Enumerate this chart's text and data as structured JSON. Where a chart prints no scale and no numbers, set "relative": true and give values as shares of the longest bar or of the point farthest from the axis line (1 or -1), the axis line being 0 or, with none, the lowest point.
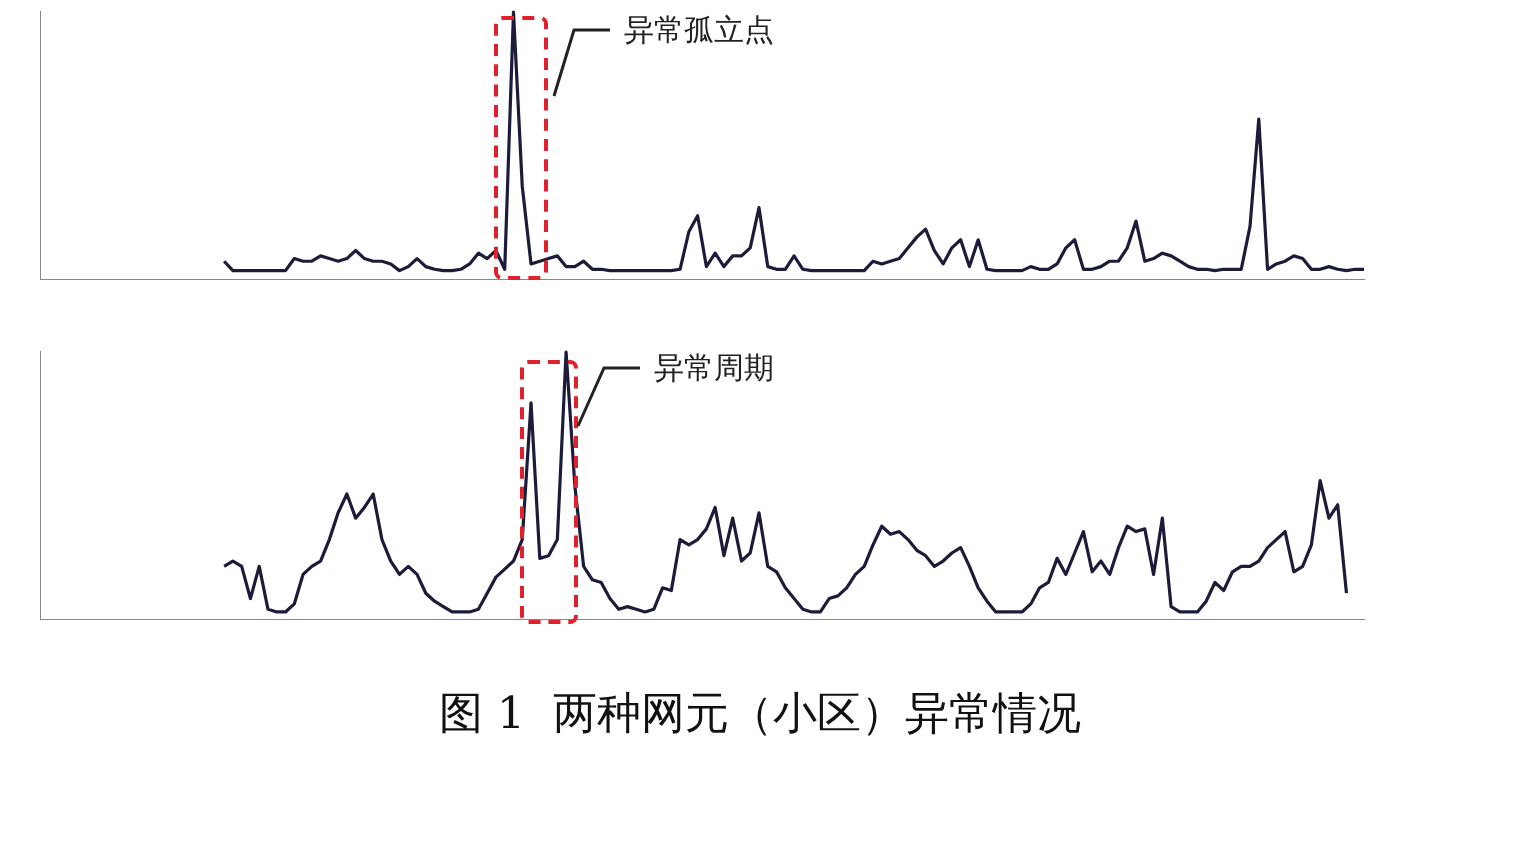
{
  "chart_data": [
    {
      "type": "line",
      "relative": true,
      "tick_labels": false,
      "annotations": [
        "异常孤立点"
      ],
      "categories": [
        null,
        null,
        null,
        null,
        null,
        null,
        null,
        null,
        null,
        null,
        null,
        null,
        null,
        null,
        null,
        null,
        null,
        null,
        null,
        null,
        null,
        null,
        null,
        null,
        null,
        null,
        null,
        null,
        null,
        null,
        null,
        null,
        null,
        null,
        null,
        null,
        null,
        null,
        null,
        null,
        null,
        null,
        null,
        null,
        null,
        null,
        null,
        null,
        null,
        null,
        null,
        null,
        null,
        null,
        null,
        null,
        null,
        null,
        null,
        null,
        null,
        null,
        null,
        null,
        null,
        null,
        null,
        null,
        null,
        null,
        null,
        null,
        null,
        null,
        null,
        null,
        null,
        null,
        null,
        null,
        null,
        null,
        null,
        null,
        null,
        null,
        null,
        null,
        null,
        null,
        null,
        null,
        null,
        null,
        null,
        null,
        null,
        null,
        null,
        null,
        null,
        null,
        null,
        null,
        null,
        null,
        null,
        null,
        null,
        null,
        null,
        null,
        null,
        null,
        null,
        null,
        null,
        null,
        null,
        null,
        null,
        null,
        null,
        null,
        null,
        null,
        null,
        null,
        null,
        null,
        null,
        null,
        null,
        null,
        null,
        null,
        null,
        null,
        null,
        null,
        null,
        null,
        null,
        null,
        null,
        null,
        null,
        null,
        null,
        null,
        null,
        null
      ],
      "series": [
        {
          "color": "#1c1c3a",
          "values": [
            null,
            null,
            null,
            null,
            null,
            null,
            null,
            null,
            null,
            null,
            null,
            null,
            null,
            null,
            null,
            null,
            null,
            null,
            null,
            null,
            null,
            0.07,
            0.035,
            0.035,
            0.035,
            0.035,
            0.035,
            0.035,
            0.035,
            0.08,
            0.07,
            0.07,
            0.09,
            0.08,
            0.07,
            0.08,
            0.11,
            0.08,
            0.07,
            0.07,
            0.06,
            0.035,
            0.05,
            0.08,
            0.05,
            0.04,
            0.035,
            0.035,
            0.04,
            0.06,
            0.1,
            0.08,
            0.11,
            0.04,
            1,
            0.35,
            0.06,
            0.07,
            0.08,
            0.09,
            0.05,
            0.05,
            0.07,
            0.04,
            0.04,
            0.035,
            0.035,
            0.035,
            0.035,
            0.035,
            0.035,
            0.035,
            0.035,
            0.04,
            0.18,
            0.24,
            0.05,
            0.1,
            0.05,
            0.09,
            0.09,
            0.12,
            0.27,
            0.05,
            0.04,
            0.04,
            0.09,
            0.04,
            0.035,
            0.035,
            0.035,
            0.035,
            0.035,
            0.035,
            0.035,
            0.07,
            0.06,
            0.07,
            0.08,
            0.12,
            0.16,
            0.19,
            0.11,
            0.06,
            0.12,
            0.15,
            0.05,
            0.15,
            0.04,
            0.035,
            0.035,
            0.035,
            0.035,
            0.05,
            0.04,
            0.04,
            0.06,
            0.12,
            0.15,
            0.04,
            0.04,
            0.05,
            0.07,
            0.07,
            0.12,
            0.22,
            0.07,
            0.08,
            0.1,
            0.09,
            0.07,
            0.05,
            0.04,
            0.04,
            0.035,
            0.04,
            0.04,
            0.04,
            0.2,
            0.6,
            0.04,
            0.06,
            0.07,
            0.09,
            0.08,
            0.04,
            0.04,
            0.05,
            0.04,
            0.035,
            0.04,
            0.04
          ]
        }
      ]
    },
    {
      "type": "line",
      "relative": true,
      "tick_labels": false,
      "annotations": [
        "异常周期",
        "图 1  两种网元（小区）异常情况"
      ],
      "categories": [
        null,
        null,
        null,
        null,
        null,
        null,
        null,
        null,
        null,
        null,
        null,
        null,
        null,
        null,
        null,
        null,
        null,
        null,
        null,
        null,
        null,
        null,
        null,
        null,
        null,
        null,
        null,
        null,
        null,
        null,
        null,
        null,
        null,
        null,
        null,
        null,
        null,
        null,
        null,
        null,
        null,
        null,
        null,
        null,
        null,
        null,
        null,
        null,
        null,
        null,
        null,
        null,
        null,
        null,
        null,
        null,
        null,
        null,
        null,
        null,
        null,
        null,
        null,
        null,
        null,
        null,
        null,
        null,
        null,
        null,
        null,
        null,
        null,
        null,
        null,
        null,
        null,
        null,
        null,
        null,
        null,
        null,
        null,
        null,
        null,
        null,
        null,
        null,
        null,
        null,
        null,
        null,
        null,
        null,
        null,
        null,
        null,
        null,
        null,
        null,
        null,
        null,
        null,
        null,
        null,
        null,
        null,
        null,
        null,
        null,
        null,
        null,
        null,
        null,
        null,
        null,
        null,
        null,
        null,
        null,
        null,
        null,
        null,
        null,
        null,
        null,
        null,
        null,
        null,
        null,
        null,
        null,
        null,
        null,
        null,
        null,
        null,
        null,
        null,
        null,
        null,
        null,
        null,
        null,
        null,
        null,
        null,
        null,
        null,
        null,
        null,
        null
      ],
      "series": [
        {
          "color": "#1c1c3a",
          "values": [
            null,
            null,
            null,
            null,
            null,
            null,
            null,
            null,
            null,
            null,
            null,
            null,
            null,
            null,
            null,
            null,
            null,
            null,
            null,
            null,
            null,
            0.2,
            0.22,
            0.2,
            0.08,
            0.2,
            0.04,
            0.03,
            0.03,
            0.06,
            0.17,
            0.2,
            0.22,
            0.3,
            0.4,
            0.47,
            0.38,
            0.42,
            0.47,
            0.3,
            0.22,
            0.17,
            0.2,
            0.17,
            0.1,
            0.07,
            0.05,
            0.03,
            0.03,
            0.03,
            0.04,
            0.1,
            0.16,
            0.19,
            0.22,
            0.3,
            0.81,
            0.23,
            0.24,
            0.3,
            1,
            0.5,
            0.2,
            0.15,
            0.14,
            0.08,
            0.04,
            0.05,
            0.04,
            0.03,
            0.04,
            0.12,
            0.11,
            0.3,
            0.28,
            0.3,
            0.34,
            0.42,
            0.24,
            0.38,
            0.22,
            0.25,
            0.4,
            0.2,
            0.18,
            0.12,
            0.08,
            0.04,
            0.03,
            0.03,
            0.08,
            0.09,
            0.12,
            0.17,
            0.2,
            0.28,
            0.35,
            0.32,
            0.33,
            0.3,
            0.26,
            0.24,
            0.2,
            0.22,
            0.25,
            0.27,
            0.2,
            0.12,
            0.07,
            0.03,
            0.03,
            0.03,
            0.03,
            0.06,
            0.12,
            0.14,
            0.23,
            0.17,
            0.25,
            0.33,
            0.18,
            0.22,
            0.17,
            0.27,
            0.35,
            0.33,
            0.34,
            0.17,
            0.38,
            0.05,
            0.03,
            0.03,
            0.03,
            0.07,
            0.14,
            0.11,
            0.18,
            0.2,
            0.2,
            0.22,
            0.27,
            0.3,
            0.33,
            0.18,
            0.2,
            0.28,
            0.52,
            0.38,
            0.43,
            0.1,
            null,
            null
          ]
        }
      ]
    }
  ]
}
